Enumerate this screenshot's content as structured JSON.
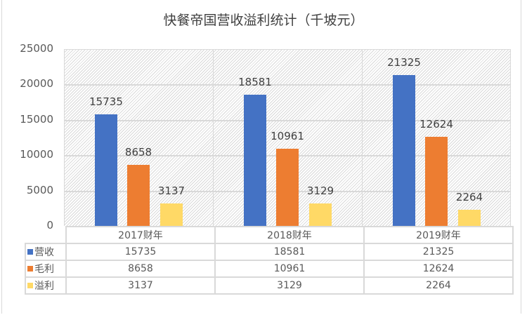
{
  "title": "快餐帝国营收溢利统计（千坡元）",
  "y_axis": {
    "ticks": [
      "25000",
      "20000",
      "15000",
      "10000",
      "5000",
      "0"
    ]
  },
  "categories": [
    "2017财年",
    "2018财年",
    "2019财年"
  ],
  "series": [
    {
      "name": "营收",
      "color": "#4472C4",
      "values": [
        "15735",
        "18581",
        "21325"
      ]
    },
    {
      "name": "毛利",
      "color": "#ED7D31",
      "values": [
        "8658",
        "10961",
        "12624"
      ]
    },
    {
      "name": "溢利",
      "color": "#FFD966",
      "values": [
        "3137",
        "3129",
        "2264"
      ]
    }
  ],
  "chart_data": {
    "type": "bar",
    "title": "快餐帝国营收溢利统计（千坡元）",
    "categories": [
      "2017财年",
      "2018财年",
      "2019财年"
    ],
    "series": [
      {
        "name": "营收",
        "values": [
          15735,
          18581,
          21325
        ]
      },
      {
        "name": "毛利",
        "values": [
          8658,
          10961,
          12624
        ]
      },
      {
        "name": "溢利",
        "values": [
          3137,
          3129,
          2264
        ]
      }
    ],
    "xlabel": "",
    "ylabel": "",
    "ylim": [
      0,
      25000
    ],
    "yticks": [
      0,
      5000,
      10000,
      15000,
      20000,
      25000
    ],
    "grid": true,
    "legend_position": "data-table-below",
    "data_labels": true
  }
}
